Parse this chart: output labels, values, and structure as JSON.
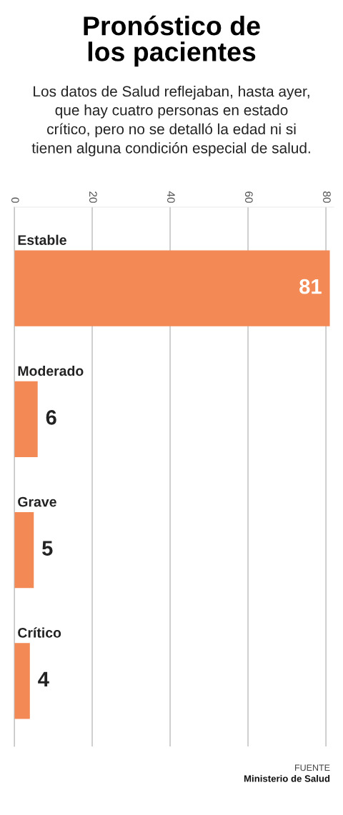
{
  "chart_data": {
    "type": "bar",
    "orientation": "horizontal",
    "title": "Pronóstico de\nlos pacientes",
    "subtitle": "Los datos de Salud reflejaban, hasta ayer,\nque hay cuatro personas en estado\ncrítico, pero no se detalló la edad ni si\ntienen alguna condición especial de salud.",
    "categories": [
      "Estable",
      "Moderado",
      "Grave",
      "Crítico"
    ],
    "values": [
      81,
      6,
      5,
      4
    ],
    "color": "#f38a55",
    "xlim": [
      0,
      82
    ],
    "xticks": [
      0,
      20,
      40,
      60,
      80
    ],
    "grid": "x",
    "data_labels": true,
    "legend": false,
    "annotations": [
      "FUENTE",
      "Ministerio de Salud"
    ]
  }
}
